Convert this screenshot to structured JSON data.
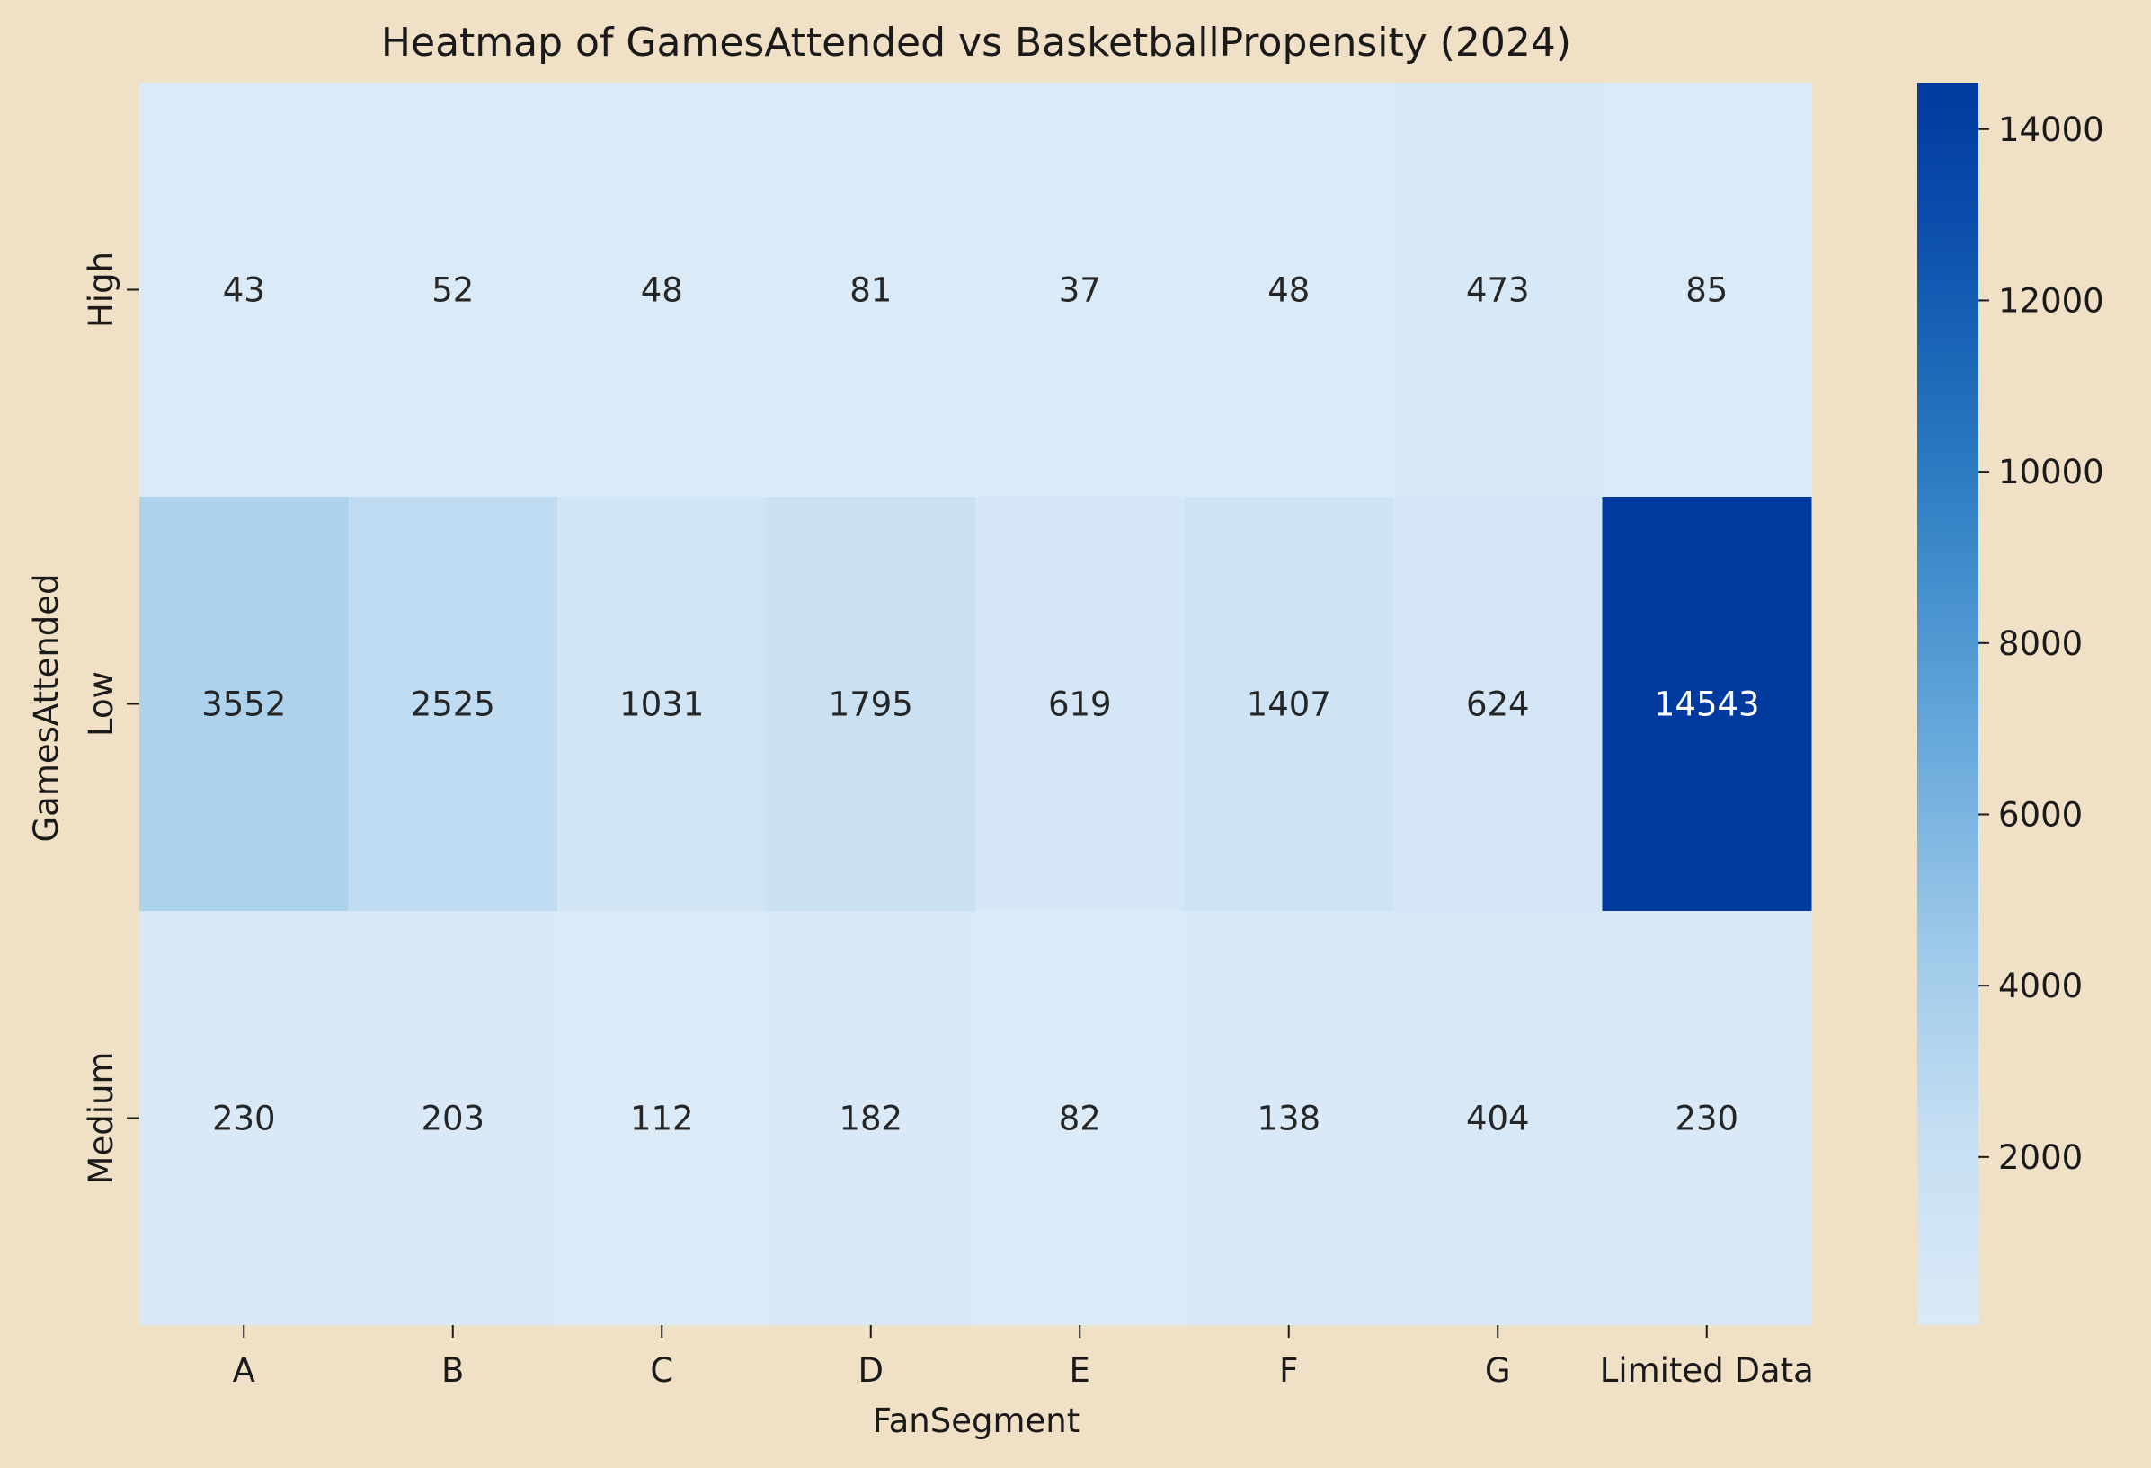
{
  "chart_data": {
    "type": "heatmap",
    "title": "Heatmap of GamesAttended vs BasketballPropensity (2024)",
    "xlabel": "FanSegment",
    "ylabel": "GamesAttended",
    "x_categories": [
      "A",
      "B",
      "C",
      "D",
      "E",
      "F",
      "G",
      "Limited Data"
    ],
    "y_categories": [
      "High",
      "Low",
      "Medium"
    ],
    "values": [
      [
        43,
        52,
        48,
        81,
        37,
        48,
        473,
        85
      ],
      [
        3552,
        2525,
        1031,
        1795,
        619,
        1407,
        624,
        14543
      ],
      [
        230,
        203,
        112,
        182,
        82,
        138,
        404,
        230
      ]
    ],
    "colorbar": {
      "min": 37,
      "max": 14543,
      "ticks": [
        2000,
        4000,
        6000,
        8000,
        10000,
        12000,
        14000
      ],
      "colormap": [
        "#dbeaf7",
        "#c6dff3",
        "#9ecae9",
        "#5ea3d9",
        "#2879c0",
        "#0c4fad",
        "#003a9f"
      ]
    }
  }
}
